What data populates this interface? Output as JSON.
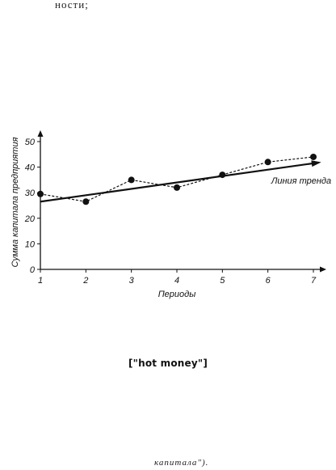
{
  "top_text": "ности;",
  "middle_text": "[\"hot money\"]",
  "bottom_text": "капитала\").",
  "chart_data": {
    "type": "line",
    "title": "",
    "xlabel": "Периоды",
    "ylabel": "Сумма капитала предприятия",
    "x": [
      1,
      2,
      3,
      4,
      5,
      6,
      7
    ],
    "xlim": [
      1,
      7
    ],
    "ylim": [
      0,
      50
    ],
    "yticks": [
      0,
      10,
      20,
      30,
      40,
      50
    ],
    "grid": false,
    "series": [
      {
        "values": [
          29.5,
          26.5,
          35,
          32,
          37,
          42,
          44
        ],
        "style": "dotted",
        "markers": true
      },
      {
        "name": "Линия тренда",
        "values": [
          26.5,
          29,
          31.5,
          34,
          36.5,
          39,
          41.5
        ],
        "style": "solid",
        "markers": false
      }
    ],
    "annotation": "Линия тренда"
  }
}
